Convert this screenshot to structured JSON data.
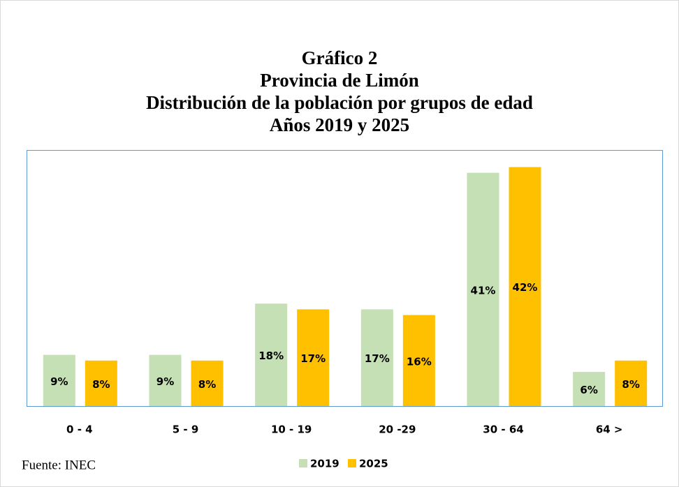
{
  "chart_data": {
    "type": "bar",
    "title_lines": [
      "Gráfico 2",
      "Provincia de Limón",
      "Distribución de la población por grupos de edad",
      "Años 2019 y 2025"
    ],
    "categories": [
      "0 - 4",
      "5 - 9",
      "10  -  19",
      "20 -29",
      "30  -  64",
      "64 >"
    ],
    "series": [
      {
        "name": "2019",
        "color": "#c5e0b4",
        "values": [
          9,
          9,
          18,
          17,
          41,
          6
        ],
        "value_labels": [
          "9%",
          "9%",
          "18%",
          "17%",
          "41%",
          "6%"
        ]
      },
      {
        "name": "2025",
        "color": "#ffc000",
        "values": [
          8,
          8,
          17,
          16,
          42,
          8
        ],
        "value_labels": [
          "8%",
          "8%",
          "17%",
          "16%",
          "42%",
          "8%"
        ]
      }
    ],
    "ylim": [
      0,
      45
    ],
    "legend": "bottom",
    "source": "Fuente: INEC"
  }
}
